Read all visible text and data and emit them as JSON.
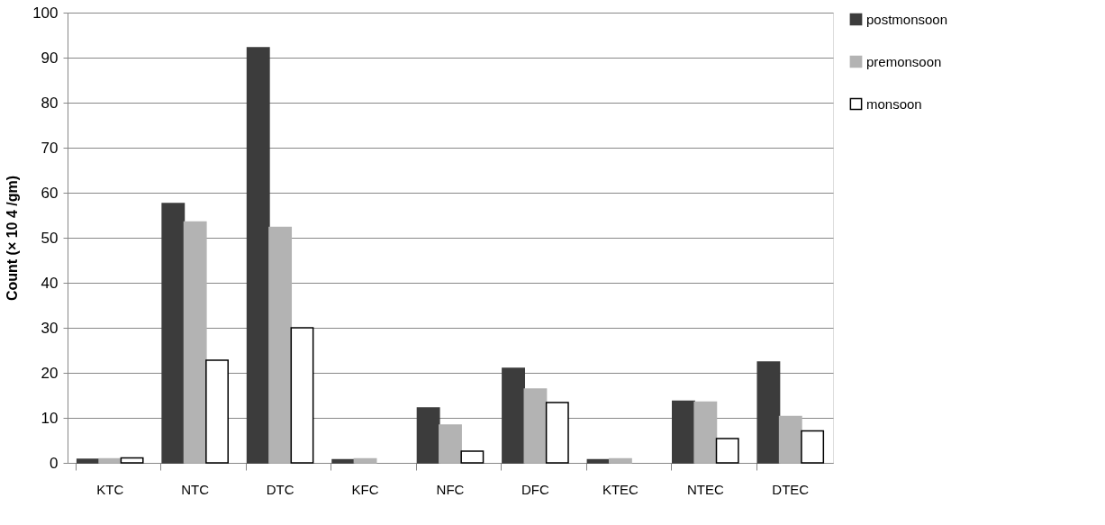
{
  "chart_data": {
    "type": "bar",
    "ylabel": "Count (× 10 4 /gm)",
    "categories": [
      "KTC",
      "NTC",
      "DTC",
      "KFC",
      "NFC",
      "DFC",
      "KTEC",
      "NTEC",
      "DTEC"
    ],
    "series": [
      {
        "name": "postmonsoon",
        "color": "#3c3c3c",
        "values": [
          0.8,
          57.6,
          92.2,
          0.7,
          12.2,
          21.0,
          0.7,
          13.7,
          22.4
        ]
      },
      {
        "name": "premonsoon",
        "color": "#b3b3b3",
        "values": [
          0.9,
          53.5,
          52.3,
          0.9,
          8.4,
          16.4,
          0.9,
          13.5,
          10.3
        ]
      },
      {
        "name": "monsoon",
        "color": "#ffffff",
        "values": [
          1.1,
          22.8,
          30.0,
          null,
          2.6,
          13.4,
          null,
          5.4,
          7.1
        ]
      }
    ],
    "ylim": [
      0,
      100
    ],
    "yticks": [
      0,
      10,
      20,
      30,
      40,
      50,
      60,
      70,
      80,
      90,
      100
    ],
    "grid": "y",
    "legend": "right"
  }
}
